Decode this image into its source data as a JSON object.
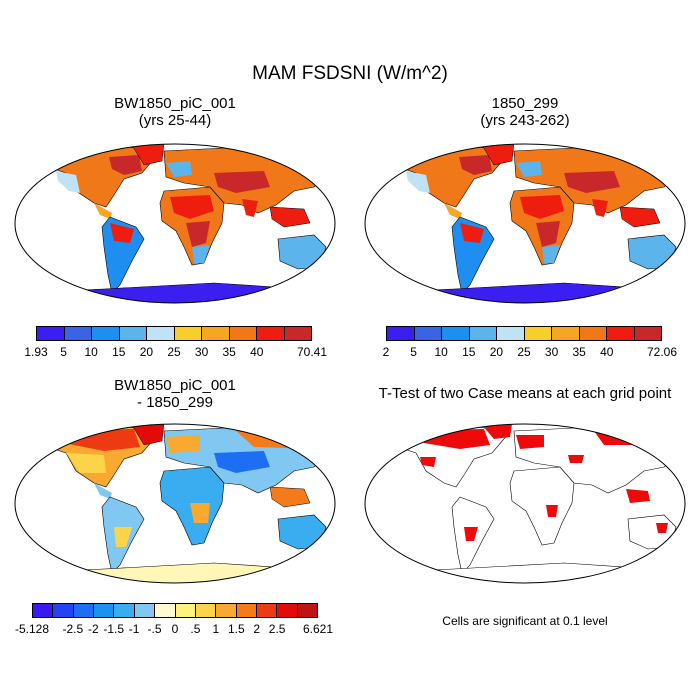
{
  "title": "MAM FSDSNI (W/m^2)",
  "panels": [
    {
      "title_line1": "BW1850_piC_001",
      "title_line2": "(yrs 25-44)"
    },
    {
      "title_line1": "1850_299",
      "title_line2": "(yrs 243-262)"
    },
    {
      "title_line1": "BW1850_piC_001",
      "title_line2": "- 1850_299"
    },
    {
      "title_line1": "T-Test of two Case means at each grid point",
      "title_line2": ""
    }
  ],
  "colorbars": {
    "case1": {
      "labels": [
        "1.93",
        "5",
        "10",
        "15",
        "20",
        "25",
        "30",
        "35",
        "40",
        "70.41"
      ],
      "colors": [
        "#3b1ff0",
        "#3a64e6",
        "#1e8ef0",
        "#5cb4ec",
        "#bfe2f4",
        "#f7cf2b",
        "#f5a623",
        "#f07818",
        "#ee1d10",
        "#c8282a"
      ]
    },
    "case2": {
      "labels": [
        "2",
        "5",
        "10",
        "15",
        "20",
        "25",
        "30",
        "35",
        "40",
        "72.06"
      ],
      "colors": [
        "#3b1ff0",
        "#3a64e6",
        "#1e8ef0",
        "#5cb4ec",
        "#bfe2f4",
        "#f7cf2b",
        "#f5a623",
        "#f07818",
        "#ee1d10",
        "#c8282a"
      ]
    },
    "diff": {
      "labels": [
        "-5.128",
        "-2.5",
        "-2",
        "-1.5",
        "-1",
        "-.5",
        "0",
        ".5",
        "1",
        "1.5",
        "2",
        "2.5",
        "6.621"
      ],
      "colors": [
        "#3a1af0",
        "#2244f2",
        "#1e6ef4",
        "#1c92f0",
        "#3aacf0",
        "#80c8f2",
        "#fffbd0",
        "#fff280",
        "#fcd44a",
        "#f9a830",
        "#f57a1a",
        "#ee3a12",
        "#e40a0a",
        "#c01414"
      ]
    }
  },
  "significance_note": "Cells are significant at 0.1 level",
  "colors": {
    "ocean": "#ffffff",
    "significant": "#ee0a0a",
    "antarctica_case": "#3b1ff0",
    "antarctica_diff": "#fff6b8"
  }
}
